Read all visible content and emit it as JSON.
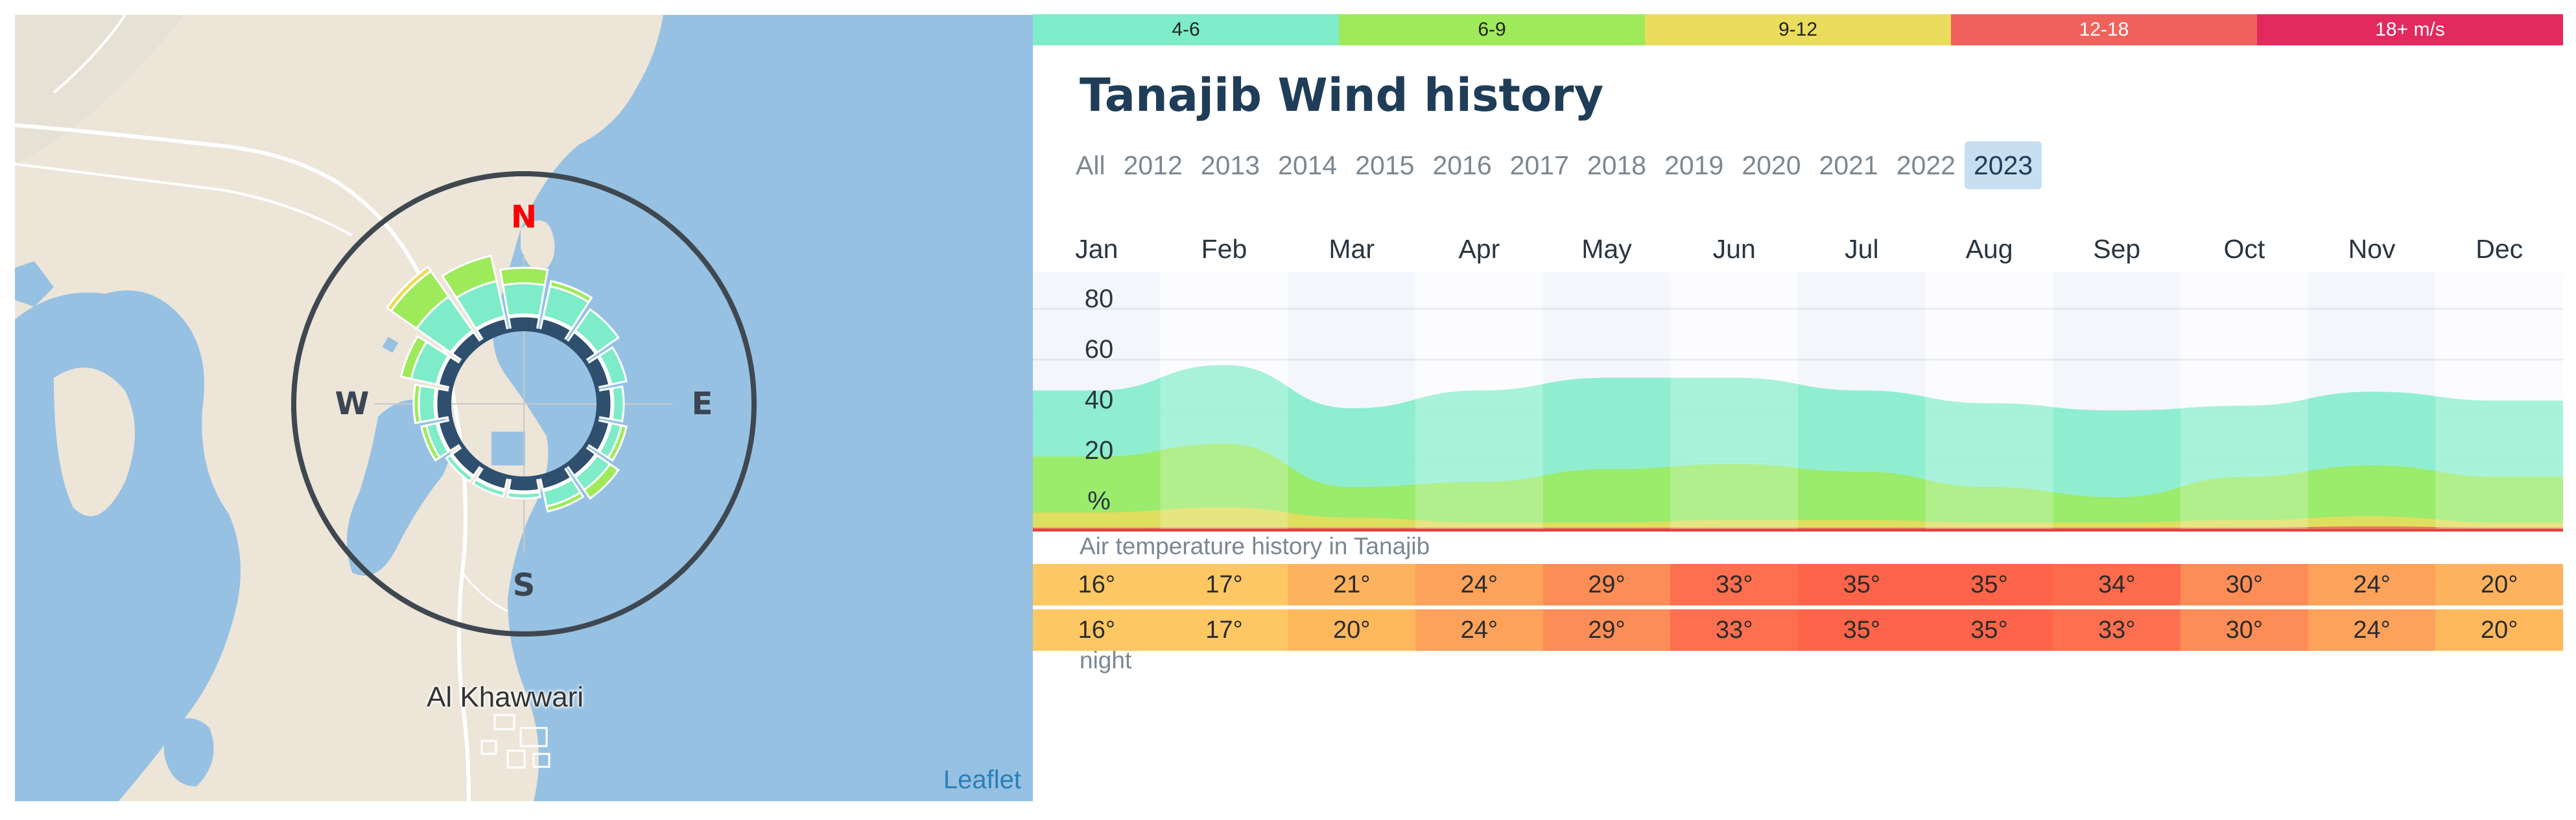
{
  "map": {
    "place_name": "Al Khawwari",
    "attribution": "Leaflet",
    "directions": {
      "n": "N",
      "e": "E",
      "s": "S",
      "w": "W"
    }
  },
  "legend": [
    {
      "label": "4-6",
      "color": "#7eecc8",
      "text": "dark"
    },
    {
      "label": "6-9",
      "color": "#9eea5b",
      "text": "dark"
    },
    {
      "label": "9-12",
      "color": "#eadc5d",
      "text": "dark"
    },
    {
      "label": "12-18",
      "color": "#f0625c",
      "text": "light"
    },
    {
      "label": "18+ m/s",
      "color": "#e22a5e",
      "text": "light"
    }
  ],
  "title": "Tanajib Wind history",
  "years": [
    "All",
    "2012",
    "2013",
    "2014",
    "2015",
    "2016",
    "2017",
    "2018",
    "2019",
    "2020",
    "2021",
    "2022",
    "2023"
  ],
  "selected_year": "2023",
  "months": [
    "Jan",
    "Feb",
    "Mar",
    "Apr",
    "May",
    "Jun",
    "Jul",
    "Aug",
    "Sep",
    "Oct",
    "Nov",
    "Dec"
  ],
  "chart_data": {
    "type": "area",
    "title": "Tanajib Wind history",
    "ylabel": "%",
    "yticks": [
      "80",
      "60",
      "40",
      "20",
      "%"
    ],
    "ylim": [
      0,
      100
    ],
    "categories": [
      "Jan",
      "Feb",
      "Mar",
      "Apr",
      "May",
      "Jun",
      "Jul",
      "Aug",
      "Sep",
      "Oct",
      "Nov",
      "Dec"
    ],
    "series": [
      {
        "name": "12-18 m/s",
        "color": "#f0625c",
        "values": [
          0.5,
          0.5,
          0.5,
          0.5,
          0.5,
          0.5,
          0.5,
          0.5,
          0.5,
          0.5,
          1,
          0.5
        ]
      },
      {
        "name": "9-12 m/s",
        "color": "#eadc5d",
        "values": [
          6,
          8,
          4,
          2,
          2,
          3,
          3,
          2,
          2,
          3,
          4,
          2
        ]
      },
      {
        "name": "6-9 m/s",
        "color": "#9eea5b",
        "values": [
          22,
          25,
          12,
          16,
          21,
          22,
          19,
          14,
          10,
          17,
          20,
          18
        ]
      },
      {
        "name": "4-6 m/s",
        "color": "#7eecc8",
        "values": [
          26,
          31,
          31,
          36,
          36,
          34,
          32,
          33,
          34,
          28,
          29,
          30
        ]
      }
    ]
  },
  "wind_rose": {
    "sectors": [
      {
        "dir": 0,
        "v46": 6,
        "v69": 3,
        "v912": 0
      },
      {
        "dir": 22.5,
        "v46": 6,
        "v69": 1,
        "v912": 0
      },
      {
        "dir": 45,
        "v46": 5,
        "v69": 0,
        "v912": 0
      },
      {
        "dir": 67.5,
        "v46": 3,
        "v69": 0,
        "v912": 0
      },
      {
        "dir": 90,
        "v46": 2,
        "v69": 0,
        "v912": 0
      },
      {
        "dir": 112.5,
        "v46": 2,
        "v69": 1,
        "v912": 0
      },
      {
        "dir": 135,
        "v46": 3,
        "v69": 2,
        "v912": 0
      },
      {
        "dir": 157.5,
        "v46": 3,
        "v69": 1,
        "v912": 0
      },
      {
        "dir": 180,
        "v46": 1,
        "v69": 0,
        "v912": 0
      },
      {
        "dir": 202.5,
        "v46": 1,
        "v69": 0,
        "v912": 0
      },
      {
        "dir": 225,
        "v46": 1,
        "v69": 0,
        "v912": 0
      },
      {
        "dir": 247.5,
        "v46": 2,
        "v69": 1,
        "v912": 0
      },
      {
        "dir": 270,
        "v46": 3,
        "v69": 1,
        "v912": 0
      },
      {
        "dir": 292.5,
        "v46": 5,
        "v69": 2,
        "v912": 0
      },
      {
        "dir": 315,
        "v46": 8,
        "v69": 6,
        "v912": 1
      },
      {
        "dir": 337.5,
        "v46": 7,
        "v69": 5,
        "v912": 0
      }
    ]
  },
  "temperature": {
    "title": "Air temperature history in Tanajib",
    "day": [
      "16°",
      "17°",
      "21°",
      "24°",
      "29°",
      "33°",
      "35°",
      "35°",
      "34°",
      "30°",
      "24°",
      "20°"
    ],
    "night": [
      "16°",
      "17°",
      "20°",
      "24°",
      "29°",
      "33°",
      "35°",
      "35°",
      "33°",
      "30°",
      "24°",
      "20°"
    ],
    "night_label": "night",
    "day_colors": [
      "#fdc864",
      "#fdc864",
      "#fdb25d",
      "#fda25b",
      "#fd8d56",
      "#fd6f4f",
      "#fd6449",
      "#fd6449",
      "#fd6b4d",
      "#fd8d56",
      "#fda25b",
      "#fdb25d"
    ],
    "night_colors": [
      "#fdc864",
      "#fdc864",
      "#fdb85e",
      "#fda25b",
      "#fd8d56",
      "#fd6f4f",
      "#fd6449",
      "#fd6449",
      "#fd704f",
      "#fd8d56",
      "#fda25b",
      "#fdb85e"
    ]
  }
}
